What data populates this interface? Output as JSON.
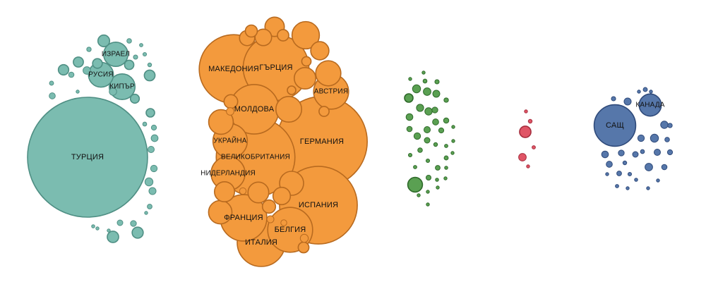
{
  "chart_data": {
    "type": "bubble",
    "title": "",
    "size_unit": "relative",
    "groups": [
      {
        "name": "",
        "color": "#7bbcb0",
        "stroke": "#4f8f84",
        "bubbles": [
          {
            "label": "ТУРЦИЯ",
            "value": 100
          },
          {
            "label": "ИЗРАЕЛ",
            "value": 4.1
          },
          {
            "label": "РУСИЯ",
            "value": 4.3
          },
          {
            "label": "КИПЪР",
            "value": 4.6
          },
          {
            "label": "",
            "value": 0.95
          },
          {
            "label": "",
            "value": 0.9
          },
          {
            "label": "",
            "value": 0.85
          },
          {
            "label": "",
            "value": 0.8
          },
          {
            "label": "",
            "value": 0.75
          },
          {
            "label": "",
            "value": 0.7
          },
          {
            "label": "",
            "value": 0.65
          },
          {
            "label": "",
            "value": 0.6
          },
          {
            "label": "",
            "value": 0.55
          },
          {
            "label": "",
            "value": 0.5
          },
          {
            "label": "",
            "value": 0.45
          },
          {
            "label": "",
            "value": 0.4
          },
          {
            "label": "",
            "value": 0.38
          },
          {
            "label": "",
            "value": 0.35
          },
          {
            "label": "",
            "value": 0.33
          },
          {
            "label": "",
            "value": 0.3
          },
          {
            "label": "",
            "value": 0.28
          },
          {
            "label": "",
            "value": 0.26
          },
          {
            "label": "",
            "value": 0.24
          },
          {
            "label": "",
            "value": 0.22
          },
          {
            "label": "",
            "value": 0.2
          },
          {
            "label": "",
            "value": 0.18
          },
          {
            "label": "",
            "value": 0.16
          },
          {
            "label": "",
            "value": 0.15
          },
          {
            "label": "",
            "value": 0.14
          },
          {
            "label": "",
            "value": 0.13
          },
          {
            "label": "",
            "value": 0.12
          },
          {
            "label": "",
            "value": 0.11
          },
          {
            "label": "",
            "value": 0.1
          },
          {
            "label": "",
            "value": 0.09
          },
          {
            "label": "",
            "value": 0.08
          },
          {
            "label": "",
            "value": 0.07
          },
          {
            "label": "",
            "value": 0.06
          },
          {
            "label": "",
            "value": 0.05
          },
          {
            "label": "",
            "value": 0.05
          },
          {
            "label": "",
            "value": 0.04
          }
        ]
      },
      {
        "name": "",
        "color": "#f39a3d",
        "stroke": "#b86a1f",
        "bubbles": [
          {
            "label": "ГЕРМАНИЯ",
            "value": 57
          },
          {
            "label": "ВЕЛИКОБРИТАНИЯ",
            "value": 43
          },
          {
            "label": "ИСПАНИЯ",
            "value": 42
          },
          {
            "label": "МАКЕДОНИЯ",
            "value": 33
          },
          {
            "label": "ГЪРЦИЯ",
            "value": 30
          },
          {
            "label": "МОЛДОВА",
            "value": 17
          },
          {
            "label": "ИТАЛИЯ",
            "value": 16
          },
          {
            "label": "ФРАНЦИЯ",
            "value": 15
          },
          {
            "label": "БЕЛГИЯ",
            "value": 14
          },
          {
            "label": "АВСТРИЯ",
            "value": 8.5
          },
          {
            "label": "УКРАЙНА",
            "value": 8.2
          },
          {
            "label": "НИДЕРЛАНДИЯ",
            "value": 8
          },
          {
            "label": "",
            "value": 5.2
          },
          {
            "label": "",
            "value": 4.6
          },
          {
            "label": "",
            "value": 4.4
          },
          {
            "label": "",
            "value": 4.2
          },
          {
            "label": "",
            "value": 4.0
          },
          {
            "label": "",
            "value": 3.8
          },
          {
            "label": "",
            "value": 3.2
          },
          {
            "label": "",
            "value": 3.0
          },
          {
            "label": "",
            "value": 2.8
          },
          {
            "label": "",
            "value": 2.6
          },
          {
            "label": "",
            "value": 2.3
          },
          {
            "label": "",
            "value": 2.1
          },
          {
            "label": "",
            "value": 1.9
          },
          {
            "label": "",
            "value": 1.6
          },
          {
            "label": "",
            "value": 1.3
          },
          {
            "label": "",
            "value": 1.2
          },
          {
            "label": "",
            "value": 1.0
          },
          {
            "label": "",
            "value": 0.9
          },
          {
            "label": "",
            "value": 0.8
          },
          {
            "label": "",
            "value": 0.7
          },
          {
            "label": "",
            "value": 0.6
          },
          {
            "label": "",
            "value": 0.5
          },
          {
            "label": "",
            "value": 0.45
          },
          {
            "label": "",
            "value": 0.4
          },
          {
            "label": "",
            "value": 0.35
          },
          {
            "label": "",
            "value": 0.3
          },
          {
            "label": "",
            "value": 0.25
          }
        ]
      },
      {
        "name": "",
        "color": "#5aa052",
        "stroke": "#2f6a2a",
        "bubbles": [
          {
            "label": "",
            "value": 1.5
          },
          {
            "label": "",
            "value": 0.5
          },
          {
            "label": "",
            "value": 0.45
          },
          {
            "label": "",
            "value": 0.4
          },
          {
            "label": "",
            "value": 0.38
          },
          {
            "label": "",
            "value": 0.36
          },
          {
            "label": "",
            "value": 0.34
          },
          {
            "label": "",
            "value": 0.32
          },
          {
            "label": "",
            "value": 0.3
          },
          {
            "label": "",
            "value": 0.28
          },
          {
            "label": "",
            "value": 0.26
          },
          {
            "label": "",
            "value": 0.24
          },
          {
            "label": "",
            "value": 0.22
          },
          {
            "label": "",
            "value": 0.2
          },
          {
            "label": "",
            "value": 0.19
          },
          {
            "label": "",
            "value": 0.18
          },
          {
            "label": "",
            "value": 0.17
          },
          {
            "label": "",
            "value": 0.16
          },
          {
            "label": "",
            "value": 0.15
          },
          {
            "label": "",
            "value": 0.14
          },
          {
            "label": "",
            "value": 0.13
          },
          {
            "label": "",
            "value": 0.12
          },
          {
            "label": "",
            "value": 0.11
          },
          {
            "label": "",
            "value": 0.1
          },
          {
            "label": "",
            "value": 0.09
          },
          {
            "label": "",
            "value": 0.09
          },
          {
            "label": "",
            "value": 0.08
          },
          {
            "label": "",
            "value": 0.08
          },
          {
            "label": "",
            "value": 0.07
          },
          {
            "label": "",
            "value": 0.07
          },
          {
            "label": "",
            "value": 0.06
          },
          {
            "label": "",
            "value": 0.06
          },
          {
            "label": "",
            "value": 0.05
          },
          {
            "label": "",
            "value": 0.05
          },
          {
            "label": "",
            "value": 0.05
          },
          {
            "label": "",
            "value": 0.04
          },
          {
            "label": "",
            "value": 0.04
          },
          {
            "label": "",
            "value": 0.04
          },
          {
            "label": "",
            "value": 0.03
          },
          {
            "label": "",
            "value": 0.03
          }
        ]
      },
      {
        "name": "",
        "color": "#e05566",
        "stroke": "#a62e3e",
        "bubbles": [
          {
            "label": "",
            "value": 0.9
          },
          {
            "label": "",
            "value": 0.4
          },
          {
            "label": "",
            "value": 0.1
          },
          {
            "label": "",
            "value": 0.08
          },
          {
            "label": "",
            "value": 0.06
          },
          {
            "label": "",
            "value": 0.05
          }
        ]
      },
      {
        "name": "",
        "color": "#5677aa",
        "stroke": "#2f4a7a",
        "bubbles": [
          {
            "label": "САЩ",
            "value": 12
          },
          {
            "label": "КАНАДА",
            "value": 3.4
          },
          {
            "label": "",
            "value": 0.45
          },
          {
            "label": "",
            "value": 0.4
          },
          {
            "label": "",
            "value": 0.38
          },
          {
            "label": "",
            "value": 0.35
          },
          {
            "label": "",
            "value": 0.32
          },
          {
            "label": "",
            "value": 0.3
          },
          {
            "label": "",
            "value": 0.28
          },
          {
            "label": "",
            "value": 0.26
          },
          {
            "label": "",
            "value": 0.24
          },
          {
            "label": "",
            "value": 0.22
          },
          {
            "label": "",
            "value": 0.2
          },
          {
            "label": "",
            "value": 0.18
          },
          {
            "label": "",
            "value": 0.16
          },
          {
            "label": "",
            "value": 0.15
          },
          {
            "label": "",
            "value": 0.14
          },
          {
            "label": "",
            "value": 0.13
          },
          {
            "label": "",
            "value": 0.12
          },
          {
            "label": "",
            "value": 0.11
          },
          {
            "label": "",
            "value": 0.1
          },
          {
            "label": "",
            "value": 0.09
          },
          {
            "label": "",
            "value": 0.08
          },
          {
            "label": "",
            "value": 0.07
          },
          {
            "label": "",
            "value": 0.06
          },
          {
            "label": "",
            "value": 0.05
          },
          {
            "label": "",
            "value": 0.05
          },
          {
            "label": "",
            "value": 0.04
          },
          {
            "label": "",
            "value": 0.04
          },
          {
            "label": "",
            "value": 0.03
          }
        ]
      }
    ]
  }
}
